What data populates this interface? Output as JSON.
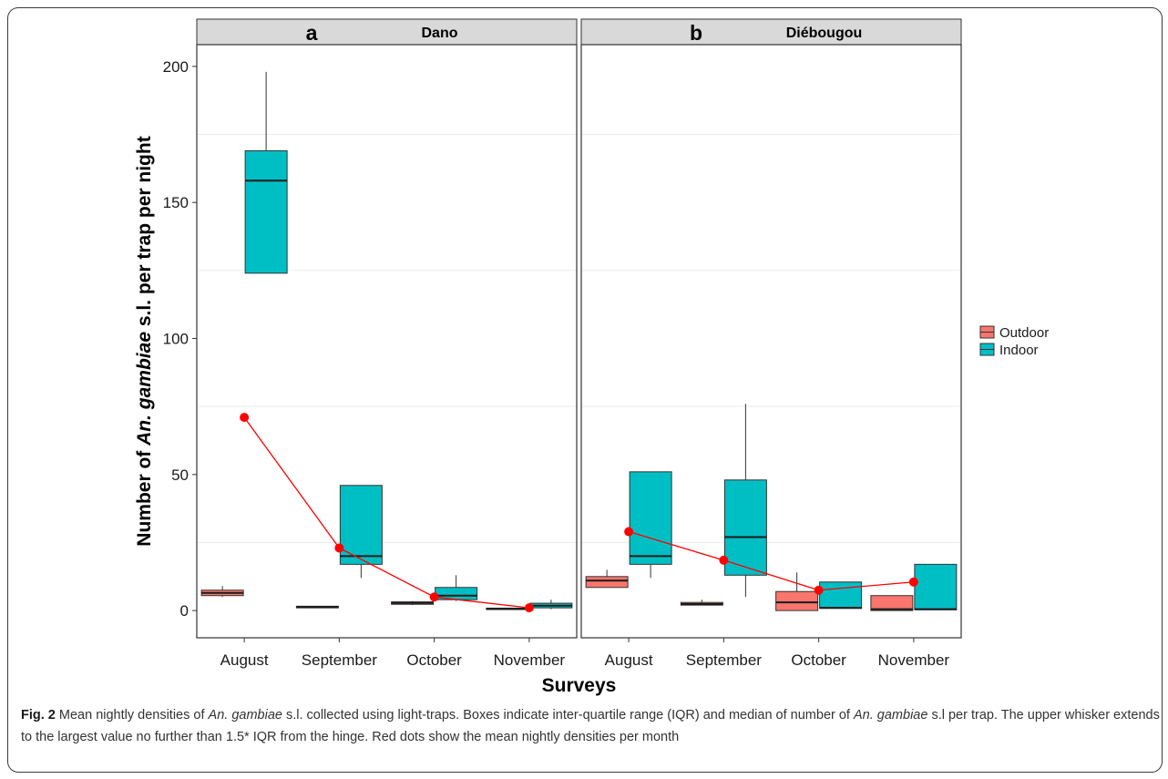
{
  "chart_data": {
    "type": "box",
    "ylabel_parts": [
      "Number of ",
      "An. gambiae",
      " s.l. per trap per night"
    ],
    "xlabel": "Surveys",
    "ylim": [
      -10,
      208
    ],
    "yticks": [
      0,
      50,
      100,
      150,
      200
    ],
    "grid": true,
    "legend_position": "right",
    "legend": [
      {
        "label": "Outdoor",
        "color": "#F8766D"
      },
      {
        "label": "Indoor",
        "color": "#00BFC4"
      }
    ],
    "categories": [
      "August",
      "September",
      "October",
      "November"
    ],
    "facets": [
      {
        "letter": "a",
        "site": "Dano",
        "outdoor": [
          {
            "lower": 5,
            "q1": 5.5,
            "median": 6.5,
            "q3": 7.5,
            "upper": 9
          },
          {
            "lower": 1,
            "q1": 1,
            "median": 1.3,
            "q3": 1.6,
            "upper": 1.6
          },
          {
            "lower": 2,
            "q1": 2.3,
            "median": 2.8,
            "q3": 3.2,
            "upper": 3.5
          },
          {
            "lower": 0.4,
            "q1": 0.4,
            "median": 0.6,
            "q3": 0.9,
            "upper": 0.9
          }
        ],
        "indoor": [
          {
            "lower": 124,
            "q1": 124,
            "median": 158,
            "q3": 169,
            "upper": 198
          },
          {
            "lower": 12,
            "q1": 17,
            "median": 20,
            "q3": 46,
            "upper": 46
          },
          {
            "lower": 3.5,
            "q1": 4,
            "median": 5.5,
            "q3": 8.5,
            "upper": 13
          },
          {
            "lower": 0.5,
            "q1": 1,
            "median": 1.8,
            "q3": 2.7,
            "upper": 4
          }
        ],
        "mean": [
          71,
          23,
          5,
          1
        ]
      },
      {
        "letter": "b",
        "site": "Diébougou",
        "outdoor": [
          {
            "lower": 8.5,
            "q1": 8.5,
            "median": 11,
            "q3": 12.5,
            "upper": 15
          },
          {
            "lower": 2,
            "q1": 2,
            "median": 2.4,
            "q3": 3,
            "upper": 4
          },
          {
            "lower": 0,
            "q1": 0,
            "median": 3,
            "q3": 7,
            "upper": 14
          },
          {
            "lower": 0,
            "q1": 0,
            "median": 0.5,
            "q3": 5.5,
            "upper": 5.5
          }
        ],
        "indoor": [
          {
            "lower": 12,
            "q1": 17,
            "median": 20,
            "q3": 51,
            "upper": 51
          },
          {
            "lower": 5,
            "q1": 13,
            "median": 27,
            "q3": 48,
            "upper": 76
          },
          {
            "lower": 0.8,
            "q1": 0.8,
            "median": 1,
            "q3": 10.5,
            "upper": 10.5
          },
          {
            "lower": 0.3,
            "q1": 0.3,
            "median": 0.5,
            "q3": 17,
            "upper": 17
          }
        ],
        "mean": [
          29,
          18.5,
          7.5,
          10.5
        ]
      }
    ]
  },
  "caption": {
    "label": "Fig. 2",
    "segments": [
      {
        "text": "  Mean nightly densities of ",
        "italic": false
      },
      {
        "text": "An. gambiae",
        "italic": true
      },
      {
        "text": " s.l. collected using light-traps. Boxes indicate inter-quartile range (IQR) and median of number of ",
        "italic": false
      },
      {
        "text": "An. gambiae",
        "italic": true
      },
      {
        "text": " s.l per trap. The upper whisker extends to the largest value no further than 1.5* IQR from the hinge. Red dots show the mean nightly densities per month",
        "italic": false
      }
    ]
  },
  "colors": {
    "panel_border": "#333333",
    "strip_fill": "#D9D9D9",
    "grid": "#EBEBEB",
    "mean_line": "#FF0000"
  }
}
